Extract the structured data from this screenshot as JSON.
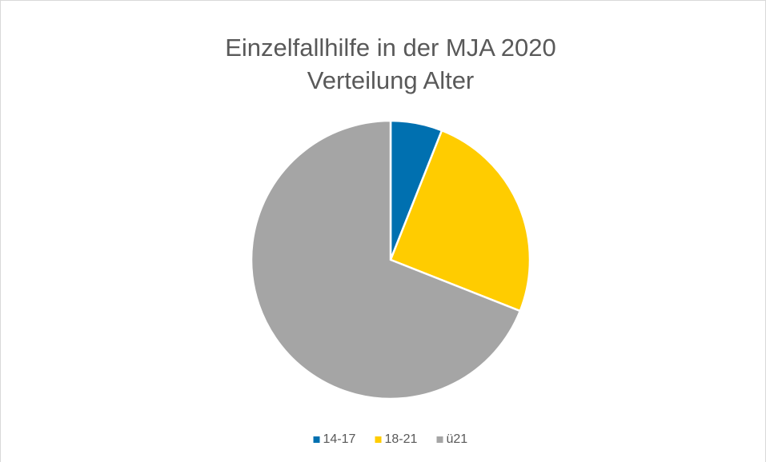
{
  "chart_data": {
    "type": "pie",
    "title": "Einzelfallhilfe in der MJA 2020",
    "subtitle": "Verteilung Alter",
    "categories": [
      "14-17",
      "18-21",
      "ü21"
    ],
    "values": [
      6,
      25,
      69
    ],
    "colors": [
      "#0070b0",
      "#ffcc00",
      "#a5a5a5"
    ],
    "legend": "bottom"
  }
}
